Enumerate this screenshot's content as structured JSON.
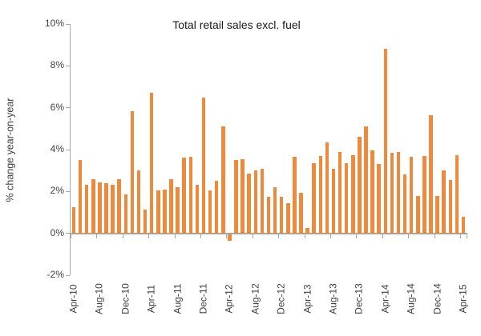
{
  "chart_data": {
    "type": "bar",
    "title": "Total retail sales excl. fuel",
    "xlabel": "",
    "ylabel": "% change year-on-year",
    "ylim": [
      -2,
      10
    ],
    "ytick_step": 2,
    "ytick_labels": [
      "10%",
      "8%",
      "6%",
      "4%",
      "2%",
      "0%",
      "-2%"
    ],
    "x_labeled_every": 4,
    "xtick_labels": [
      "Apr-10",
      "Aug-10",
      "Dec-10",
      "Apr-11",
      "Aug-11",
      "Dec-11",
      "Apr-12",
      "Aug-12",
      "Dec-12",
      "Apr-13",
      "Aug-13",
      "Dec-13",
      "Apr-14",
      "Aug-14",
      "Dec-14",
      "Apr-15"
    ],
    "categories": [
      "Apr-10",
      "May-10",
      "Jun-10",
      "Jul-10",
      "Aug-10",
      "Sep-10",
      "Oct-10",
      "Nov-10",
      "Dec-10",
      "Jan-11",
      "Feb-11",
      "Mar-11",
      "Apr-11",
      "May-11",
      "Jun-11",
      "Jul-11",
      "Aug-11",
      "Sep-11",
      "Oct-11",
      "Nov-11",
      "Dec-11",
      "Jan-12",
      "Feb-12",
      "Mar-12",
      "Apr-12",
      "May-12",
      "Jun-12",
      "Jul-12",
      "Aug-12",
      "Sep-12",
      "Oct-12",
      "Nov-12",
      "Dec-12",
      "Jan-13",
      "Feb-13",
      "Mar-13",
      "Apr-13",
      "May-13",
      "Jun-13",
      "Jul-13",
      "Aug-13",
      "Sep-13",
      "Oct-13",
      "Nov-13",
      "Dec-13",
      "Jan-14",
      "Feb-14",
      "Mar-14",
      "Apr-14",
      "May-14",
      "Jun-14",
      "Jul-14",
      "Aug-14",
      "Sep-14",
      "Oct-14",
      "Nov-14",
      "Dec-14",
      "Jan-15",
      "Feb-15",
      "Mar-15",
      "Apr-15"
    ],
    "values": [
      1.25,
      3.5,
      2.3,
      2.6,
      2.45,
      2.4,
      2.3,
      2.6,
      1.85,
      5.85,
      3.0,
      1.15,
      6.7,
      2.05,
      2.1,
      2.6,
      2.2,
      3.6,
      3.65,
      2.3,
      6.5,
      2.05,
      2.5,
      5.1,
      -0.3,
      3.5,
      3.55,
      2.85,
      3.0,
      3.1,
      1.75,
      2.2,
      1.75,
      1.45,
      3.65,
      1.95,
      0.25,
      3.35,
      3.7,
      4.35,
      3.1,
      3.9,
      3.35,
      3.75,
      4.6,
      5.1,
      3.95,
      3.3,
      8.8,
      3.85,
      3.9,
      2.8,
      3.65,
      1.8,
      3.7,
      5.65,
      1.8,
      3.0,
      2.55,
      3.75,
      0.8
    ],
    "bar_color": "#EE8A3D",
    "axis_color": "#A6A6A6",
    "text_color": "#3F3F3F",
    "grid": false,
    "legend": "none"
  }
}
